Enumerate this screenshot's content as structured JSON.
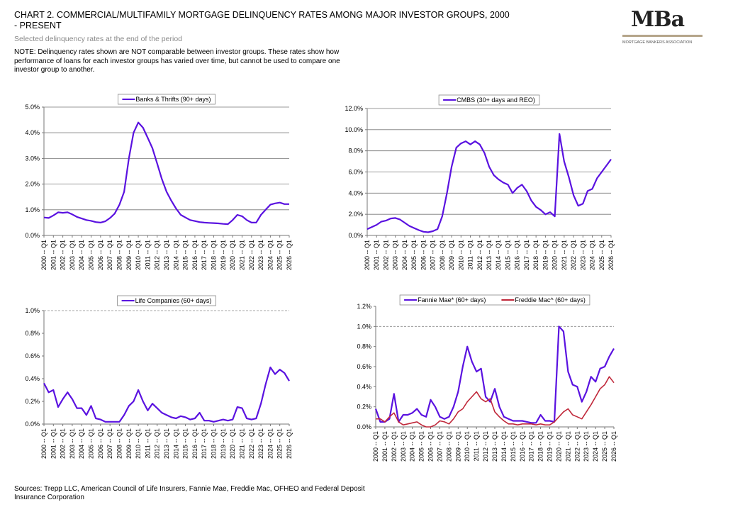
{
  "page": {
    "title": "CHART 2.  COMMERCIAL/MULTIFAMILY MORTGAGE DELINQUENCY  RATES AMONG MAJOR INVESTOR GROUPS, 2000 - PRESENT",
    "subtitle": "Selected delinquency rates at the end of the period",
    "note": "NOTE: Delinquency rates shown are NOT comparable between investor groups.  These rates show how performance of loans for each investor groups has varied over time, but cannot be used to compare one investor group to another.",
    "source": "Sources: Trepp LLC, American Council of Life Insurers, Fannie Mae, Freddie Mac, OFHEO and Federal Deposit Insurance Corporation",
    "logo": "MBa",
    "logo_tagline": "MORTGAGE BANKERS ASSOCIATION"
  },
  "chart_data": [
    {
      "type": "line",
      "grid": true,
      "categories": [
        "2000 -- Q1",
        null,
        "2001 -- Q1",
        null,
        "2002 -- Q1",
        null,
        "2003 -- Q1",
        null,
        "2004 -- Q1",
        null,
        "2005 -- Q1",
        null,
        "2006 -- Q1",
        null,
        "2007 -- Q1",
        null,
        "2008 -- Q1",
        null,
        "2009 -- Q1",
        null,
        "2010 -- Q1",
        null,
        "2011 -- Q1",
        null,
        "2012 -- Q1",
        null,
        "2013 -- Q1",
        null,
        "2014 -- Q1",
        null,
        "2015 -- Q1",
        null,
        "2016 -- Q1",
        null,
        "2017 -- Q1",
        null,
        "2018 -- Q1",
        null,
        "2019 -- Q1",
        null,
        "2020 -- Q1",
        null,
        "2021 -- Q1",
        null,
        "2022 -- Q1",
        null,
        "2023 -- Q1",
        null,
        "2024 -- Q1",
        null,
        "2025 -- Q1",
        null,
        "2026 -- Q1"
      ],
      "ylim": [
        0,
        5
      ],
      "yticks": [
        {
          "value": 0,
          "label": "0.0%"
        },
        {
          "value": 1,
          "label": "1.0%"
        },
        {
          "value": 2,
          "label": "2.0%"
        },
        {
          "value": 3,
          "label": "3.0%"
        },
        {
          "value": 4,
          "label": "4.0%"
        },
        {
          "value": 5,
          "label": "5.0%"
        }
      ],
      "series": [
        {
          "name": "Banks & Thrifts (90+ days)",
          "color": "#5a12e0",
          "values": [
            0.7,
            0.68,
            0.78,
            0.9,
            0.88,
            0.9,
            0.82,
            0.72,
            0.66,
            0.6,
            0.57,
            0.52,
            0.5,
            0.55,
            0.68,
            0.85,
            1.2,
            1.7,
            3.0,
            4.0,
            4.4,
            4.2,
            3.8,
            3.4,
            2.8,
            2.2,
            1.7,
            1.35,
            1.05,
            0.8,
            0.7,
            0.6,
            0.56,
            0.52,
            0.5,
            0.49,
            0.48,
            0.47,
            0.45,
            0.44,
            0.6,
            0.8,
            0.75,
            0.6,
            0.5,
            0.5,
            0.8,
            1.0,
            1.2,
            1.25,
            1.28,
            1.22,
            1.22
          ]
        }
      ]
    },
    {
      "type": "line",
      "grid": true,
      "categories": [
        "2000 -- Q1",
        null,
        "2001 -- Q1",
        null,
        "2002 -- Q1",
        null,
        "2003 -- Q1",
        null,
        "2004 -- Q1",
        null,
        "2005 -- Q1",
        null,
        "2006 -- Q1",
        null,
        "2007 -- Q1",
        null,
        "2008 -- Q1",
        null,
        "2009 -- Q1",
        null,
        "2010 -- Q1",
        null,
        "2011 -- Q1",
        null,
        "2012 -- Q1",
        null,
        "2013 -- Q1",
        null,
        "2014 -- Q1",
        null,
        "2015 -- Q1",
        null,
        "2016 -- Q1",
        null,
        "2017 -- Q1",
        null,
        "2018 -- Q1",
        null,
        "2019 -- Q1",
        null,
        "2020 -- Q1",
        null,
        "2021 -- Q1",
        null,
        "2022 -- Q1",
        null,
        "2023 -- Q1",
        null,
        "2024 -- Q1",
        null,
        "2025 -- Q1",
        null,
        "2026 -- Q1"
      ],
      "ylim": [
        0,
        12
      ],
      "yticks": [
        {
          "value": 0,
          "label": "0.0%"
        },
        {
          "value": 2,
          "label": "2.0%"
        },
        {
          "value": 4,
          "label": "4.0%"
        },
        {
          "value": 6,
          "label": "6.0%"
        },
        {
          "value": 8,
          "label": "8.0%"
        },
        {
          "value": 10,
          "label": "10.0%"
        },
        {
          "value": 12,
          "label": "12.0%"
        }
      ],
      "series": [
        {
          "name": "CMBS (30+ days and REO)",
          "color": "#5a12e0",
          "values": [
            0.6,
            0.8,
            1.0,
            1.3,
            1.4,
            1.6,
            1.65,
            1.5,
            1.2,
            0.9,
            0.7,
            0.5,
            0.35,
            0.3,
            0.4,
            0.6,
            1.8,
            4.0,
            6.5,
            8.3,
            8.7,
            8.9,
            8.6,
            8.9,
            8.6,
            7.8,
            6.5,
            5.7,
            5.3,
            5.0,
            4.8,
            4.0,
            4.5,
            4.8,
            4.2,
            3.3,
            2.7,
            2.4,
            2.0,
            2.2,
            1.8,
            9.6,
            7.0,
            5.5,
            3.8,
            2.8,
            3.0,
            4.2,
            4.4,
            5.4,
            6.0,
            6.6,
            7.2
          ]
        }
      ]
    },
    {
      "type": "line",
      "grid": false,
      "hline": 1,
      "categories": [
        "2000 -- Q1",
        null,
        "2001 -- Q1",
        null,
        "2002 -- Q1",
        null,
        "2003 -- Q1",
        null,
        "2004 -- Q1",
        null,
        "2005 -- Q1",
        null,
        "2006 -- Q1",
        null,
        "2007 -- Q1",
        null,
        "2008 -- Q1",
        null,
        "2009 -- Q1",
        null,
        "2010 -- Q1",
        null,
        "2011 -- Q1",
        null,
        "2012 -- Q1",
        null,
        "2013 -- Q1",
        null,
        "2014 -- Q1",
        null,
        "2015 -- Q1",
        null,
        "2016 -- Q1",
        null,
        "2017 -- Q1",
        null,
        "2018 -- Q1",
        null,
        "2019 -- Q1",
        null,
        "2020 -- Q1",
        null,
        "2021 -- Q1",
        null,
        "2022 -- Q1",
        null,
        "2023 -- Q1",
        null,
        "2024 -- Q1",
        null,
        "2025 -- Q1",
        null,
        "2026 -- Q1"
      ],
      "ylim": [
        0,
        1
      ],
      "yticks": [
        {
          "value": 0,
          "label": "0.0%"
        },
        {
          "value": 0.2,
          "label": "0.2%"
        },
        {
          "value": 0.4,
          "label": "0.4%"
        },
        {
          "value": 0.6,
          "label": "0.6%"
        },
        {
          "value": 0.8,
          "label": "0.8%"
        },
        {
          "value": 1,
          "label": "1.0%"
        }
      ],
      "series": [
        {
          "name": "Life Companies (60+ days)",
          "color": "#5a12e0",
          "values": [
            0.36,
            0.28,
            0.3,
            0.15,
            0.22,
            0.28,
            0.22,
            0.14,
            0.14,
            0.08,
            0.16,
            0.05,
            0.04,
            0.02,
            0.02,
            0.02,
            0.02,
            0.08,
            0.16,
            0.2,
            0.3,
            0.2,
            0.12,
            0.18,
            0.14,
            0.1,
            0.08,
            0.06,
            0.05,
            0.07,
            0.06,
            0.04,
            0.05,
            0.1,
            0.03,
            0.03,
            0.02,
            0.03,
            0.04,
            0.03,
            0.04,
            0.15,
            0.14,
            0.05,
            0.04,
            0.05,
            0.18,
            0.35,
            0.5,
            0.44,
            0.48,
            0.45,
            0.38
          ]
        }
      ]
    },
    {
      "type": "line",
      "grid": false,
      "hline": 1,
      "categories": [
        "2000 -- Q1",
        null,
        "2001 -- Q1",
        null,
        "2002 -- Q1",
        null,
        "2003 -- Q1",
        null,
        "2004 -- Q1",
        null,
        "2005 -- Q1",
        null,
        "2006 -- Q1",
        null,
        "2007 -- Q1",
        null,
        "2008 -- Q1",
        null,
        "2009 -- Q1",
        null,
        "2010 -- Q1",
        null,
        "2011 -- Q1",
        null,
        "2012 -- Q1",
        null,
        "2013 -- Q1",
        null,
        "2014 -- Q1",
        null,
        "2015 -- Q1",
        null,
        "2016 -- Q1",
        null,
        "2017 -- Q1",
        null,
        "2018 -- Q1",
        null,
        "2019 -- Q1",
        null,
        "2020 -- Q1",
        null,
        "2021 -- Q1",
        null,
        "2022 -- Q1",
        null,
        "2023 -- Q1",
        null,
        "2024 -- Q1",
        null,
        "2025 -- Q1",
        null,
        "2026 -- Q1"
      ],
      "ylim": [
        0,
        1.2
      ],
      "yticks": [
        {
          "value": 0,
          "label": "0.0%"
        },
        {
          "value": 0.2,
          "label": "0.2%"
        },
        {
          "value": 0.4,
          "label": "0.4%"
        },
        {
          "value": 0.6,
          "label": "0.6%"
        },
        {
          "value": 0.8,
          "label": "0.8%"
        },
        {
          "value": 1,
          "label": "1.0%"
        },
        {
          "value": 1.2,
          "label": "1.2%"
        }
      ],
      "series": [
        {
          "name": "Fannie Mae* (60+ days)",
          "color": "#5a12e0",
          "values": [
            0.18,
            0.05,
            0.05,
            0.08,
            0.33,
            0.05,
            0.12,
            0.12,
            0.14,
            0.18,
            0.12,
            0.1,
            0.27,
            0.2,
            0.1,
            0.08,
            0.1,
            0.2,
            0.35,
            0.6,
            0.8,
            0.65,
            0.55,
            0.58,
            0.3,
            0.25,
            0.38,
            0.2,
            0.1,
            0.08,
            0.06,
            0.06,
            0.06,
            0.05,
            0.04,
            0.04,
            0.12,
            0.06,
            0.06,
            0.05,
            1.0,
            0.95,
            0.55,
            0.42,
            0.4,
            0.25,
            0.35,
            0.5,
            0.45,
            0.58,
            0.6,
            0.7,
            0.78
          ]
        },
        {
          "name": "Freddie Mac^ (60+ days)",
          "color": "#c0283a",
          "values": [
            0.08,
            0.08,
            0.05,
            0.1,
            0.14,
            0.05,
            0.02,
            0.03,
            0.04,
            0.05,
            0.02,
            0.0,
            0.0,
            0.02,
            0.06,
            0.05,
            0.03,
            0.08,
            0.15,
            0.18,
            0.25,
            0.3,
            0.35,
            0.28,
            0.25,
            0.28,
            0.15,
            0.1,
            0.06,
            0.03,
            0.03,
            0.02,
            0.03,
            0.03,
            0.03,
            0.02,
            0.03,
            0.02,
            0.02,
            0.05,
            0.1,
            0.15,
            0.18,
            0.12,
            0.1,
            0.08,
            0.15,
            0.22,
            0.3,
            0.38,
            0.42,
            0.5,
            0.44
          ]
        }
      ]
    }
  ]
}
